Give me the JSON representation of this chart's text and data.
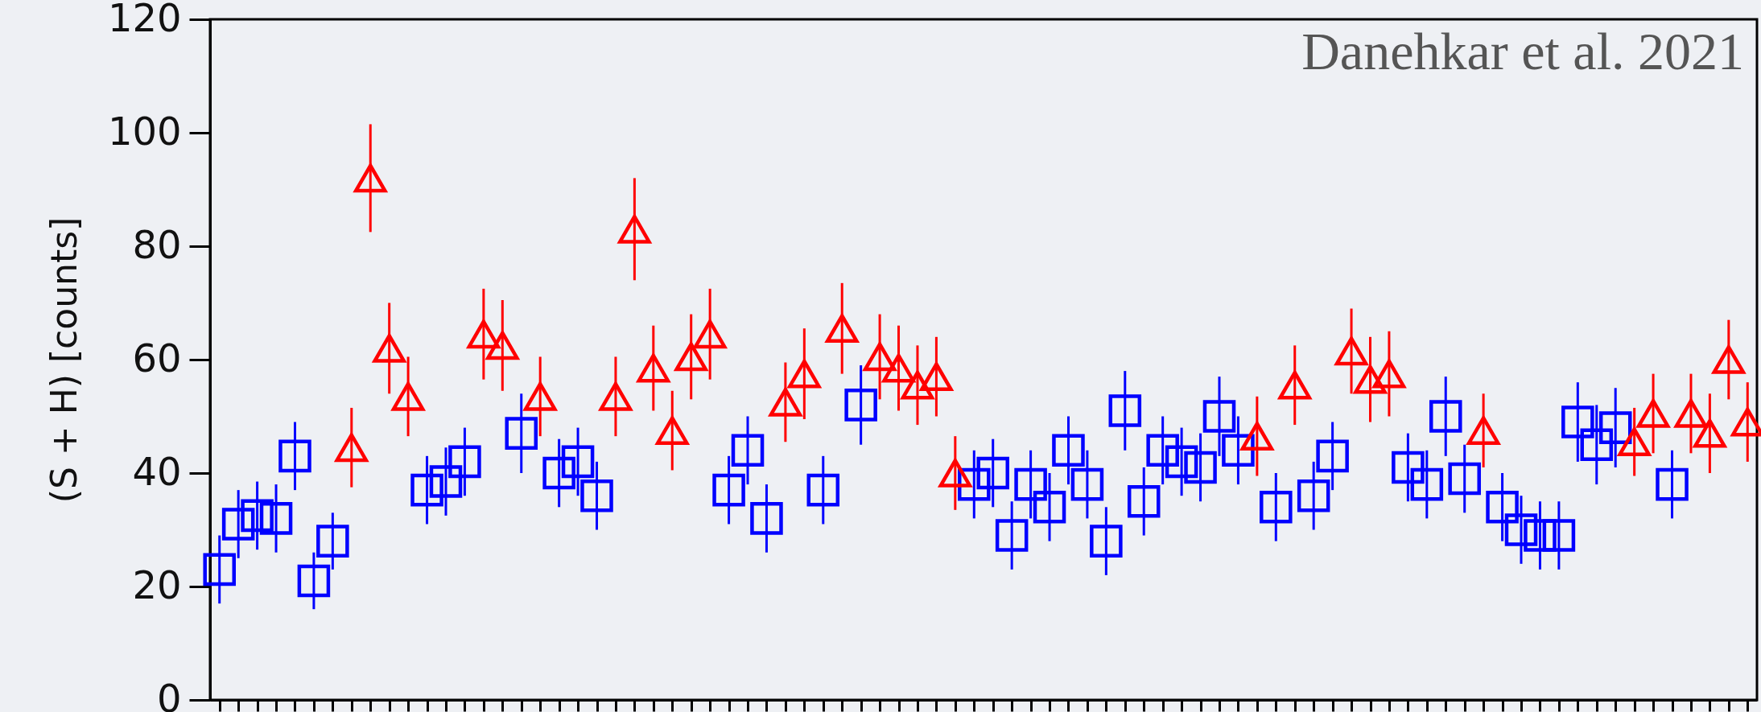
{
  "chart_data": {
    "type": "scatter",
    "ylabel": "(S + H) [counts]",
    "annotations": [
      "Danehkar et al. 2021"
    ],
    "categories": [
      null,
      null,
      null,
      null,
      null,
      null,
      null,
      null,
      null,
      null,
      null,
      null,
      null,
      null,
      null,
      null,
      null,
      null,
      null,
      null,
      null,
      null,
      null,
      null,
      null,
      null,
      null,
      null,
      null,
      null,
      null,
      null,
      null,
      null,
      null,
      null,
      null,
      null,
      null,
      null,
      null,
      null,
      null,
      null,
      null,
      null,
      null,
      null,
      null,
      null,
      null,
      null,
      null,
      null,
      null,
      null,
      null,
      null,
      null,
      null,
      null,
      null,
      null,
      null,
      null,
      null,
      null,
      null,
      null,
      null,
      null,
      null,
      null,
      null,
      null,
      null,
      null,
      null,
      null,
      null,
      null,
      null
    ],
    "ylim": [
      0,
      120
    ],
    "yticks": [
      0,
      20,
      40,
      60,
      80,
      100,
      120
    ],
    "tick_labels": "y",
    "grid": false,
    "series": [
      {
        "color": "#0000ff",
        "marker": "square",
        "values": [
          23,
          31,
          32.5,
          32,
          43,
          21,
          28,
          null,
          null,
          null,
          null,
          37,
          38.5,
          42,
          null,
          null,
          47,
          null,
          40,
          42,
          36,
          null,
          null,
          null,
          null,
          null,
          null,
          37,
          44,
          32,
          null,
          null,
          37,
          null,
          52,
          null,
          null,
          null,
          null,
          null,
          38,
          40,
          29,
          38,
          34,
          44,
          38,
          28,
          51,
          35,
          44,
          42,
          41,
          50,
          44,
          null,
          34,
          null,
          36,
          43,
          null,
          null,
          null,
          41,
          38,
          50,
          39,
          null,
          34,
          30,
          29,
          29,
          49,
          45,
          48,
          null,
          null,
          38,
          null,
          null,
          null,
          null
        ],
        "errors": [
          6,
          6,
          6,
          6,
          6,
          5,
          5,
          null,
          null,
          null,
          null,
          6,
          6,
          6,
          null,
          null,
          7,
          null,
          6,
          6,
          6,
          null,
          null,
          null,
          null,
          null,
          null,
          6,
          6,
          6,
          null,
          null,
          6,
          null,
          7,
          null,
          null,
          null,
          null,
          null,
          6,
          6,
          6,
          6,
          6,
          6,
          6,
          6,
          7,
          6,
          6,
          6,
          6,
          7,
          6,
          null,
          6,
          null,
          6,
          6,
          null,
          null,
          null,
          6,
          6,
          7,
          6,
          null,
          6,
          6,
          6,
          6,
          7,
          7,
          7,
          null,
          null,
          6,
          null,
          null,
          null,
          null
        ]
      },
      {
        "color": "#ff0000",
        "marker": "triangle",
        "values": [
          null,
          null,
          null,
          null,
          null,
          null,
          null,
          44.5,
          92,
          62,
          53.5,
          null,
          null,
          null,
          64.5,
          62.5,
          null,
          53.5,
          null,
          null,
          null,
          53.5,
          83,
          58.5,
          47.5,
          60.5,
          64.5,
          null,
          null,
          null,
          52.5,
          57.5,
          null,
          65.5,
          null,
          60.5,
          58.5,
          55.5,
          57,
          40,
          null,
          null,
          null,
          null,
          null,
          null,
          null,
          null,
          null,
          null,
          null,
          null,
          null,
          null,
          null,
          46.5,
          null,
          55.5,
          null,
          null,
          61.5,
          56.5,
          57.5,
          null,
          null,
          null,
          null,
          47.5,
          null,
          null,
          null,
          null,
          null,
          null,
          null,
          45.5,
          50.5,
          null,
          50.5,
          47,
          60,
          49
        ],
        "errors": [
          null,
          null,
          null,
          null,
          null,
          null,
          null,
          7,
          9.5,
          8,
          7,
          null,
          null,
          null,
          8,
          8,
          null,
          7,
          null,
          null,
          null,
          7,
          9,
          7.5,
          7,
          7.5,
          8,
          null,
          null,
          null,
          7,
          8,
          null,
          8,
          null,
          7.5,
          7.5,
          7,
          7,
          6.5,
          null,
          null,
          null,
          null,
          null,
          null,
          null,
          null,
          null,
          null,
          null,
          null,
          null,
          null,
          null,
          7,
          null,
          7,
          null,
          null,
          7.5,
          7.5,
          7.5,
          null,
          null,
          null,
          null,
          6.5,
          null,
          null,
          null,
          null,
          null,
          null,
          null,
          6,
          7,
          null,
          7,
          7,
          7,
          7
        ]
      }
    ]
  }
}
